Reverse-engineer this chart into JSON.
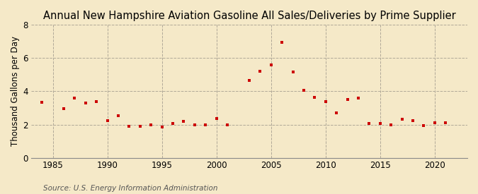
{
  "title": "Annual New Hampshire Aviation Gasoline All Sales/Deliveries by Prime Supplier",
  "ylabel": "Thousand Gallons per Day",
  "source": "Source: U.S. Energy Information Administration",
  "background_color": "#f5e9c8",
  "plot_bg_color": "#f5e9c8",
  "dot_color": "#cc0000",
  "years": [
    1984,
    1986,
    1987,
    1988,
    1989,
    1990,
    1991,
    1992,
    1993,
    1994,
    1995,
    1996,
    1997,
    1998,
    1999,
    2000,
    2001,
    2003,
    2004,
    2005,
    2006,
    2007,
    2008,
    2009,
    2010,
    2011,
    2012,
    2013,
    2014,
    2015,
    2016,
    2017,
    2018,
    2019,
    2020,
    2021
  ],
  "values": [
    3.35,
    2.95,
    3.6,
    3.3,
    3.4,
    2.25,
    2.55,
    1.9,
    1.9,
    2.0,
    1.85,
    2.05,
    2.2,
    2.0,
    2.0,
    2.35,
    2.0,
    4.65,
    5.2,
    5.6,
    6.95,
    5.15,
    4.05,
    3.65,
    3.4,
    2.7,
    3.5,
    3.6,
    2.05,
    2.05,
    2.0,
    2.3,
    2.25,
    1.95,
    2.1,
    2.1
  ],
  "xlim": [
    1983,
    2023
  ],
  "ylim": [
    0,
    8
  ],
  "yticks": [
    0,
    2,
    4,
    6,
    8
  ],
  "xticks": [
    1985,
    1990,
    1995,
    2000,
    2005,
    2010,
    2015,
    2020
  ],
  "title_fontsize": 10.5,
  "label_fontsize": 8.5,
  "tick_fontsize": 8.5,
  "source_fontsize": 7.5,
  "grid_color": "#b0a898",
  "spine_color": "#888888"
}
